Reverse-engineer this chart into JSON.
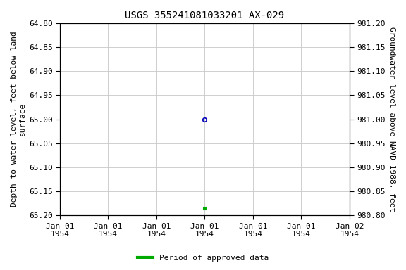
{
  "title": "USGS 355241081033201 AX-029",
  "ylabel_left": "Depth to water level, feet below land\nsurface",
  "ylabel_right": "Groundwater level above NAVD 1988, feet",
  "ylim_left": [
    64.8,
    65.2
  ],
  "ylim_right": [
    981.2,
    980.8
  ],
  "yticks_left": [
    64.8,
    64.85,
    64.9,
    64.95,
    65.0,
    65.05,
    65.1,
    65.15,
    65.2
  ],
  "yticks_right": [
    981.2,
    981.15,
    981.1,
    981.05,
    981.0,
    980.95,
    980.9,
    980.85,
    980.8
  ],
  "xlim": [
    0,
    6
  ],
  "xtick_positions": [
    0,
    1,
    2,
    3,
    4,
    5,
    6
  ],
  "xtick_labels": [
    "Jan 01\n1954",
    "Jan 01\n1954",
    "Jan 01\n1954",
    "Jan 01\n1954",
    "Jan 01\n1954",
    "Jan 01\n1954",
    "Jan 02\n1954"
  ],
  "point_blue_x": 3.0,
  "point_blue_y": 65.0,
  "point_green_x": 3.0,
  "point_green_y": 65.185,
  "blue_color": "#0000bb",
  "green_color": "#00aa00",
  "legend_label": "Period of approved data",
  "background_color": "#ffffff",
  "grid_color": "#c8c8c8",
  "title_fontsize": 10,
  "label_fontsize": 8,
  "tick_fontsize": 8,
  "legend_fontsize": 8
}
